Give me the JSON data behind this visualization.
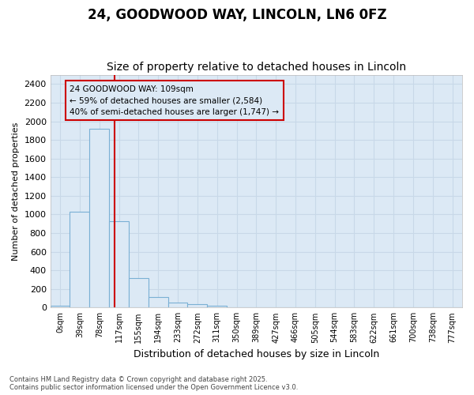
{
  "title1": "24, GOODWOOD WAY, LINCOLN, LN6 0FZ",
  "title2": "Size of property relative to detached houses in Lincoln",
  "xlabel": "Distribution of detached houses by size in Lincoln",
  "ylabel": "Number of detached properties",
  "bar_labels": [
    "0sqm",
    "39sqm",
    "78sqm",
    "117sqm",
    "155sqm",
    "194sqm",
    "233sqm",
    "272sqm",
    "311sqm",
    "350sqm",
    "389sqm",
    "427sqm",
    "466sqm",
    "505sqm",
    "544sqm",
    "583sqm",
    "622sqm",
    "661sqm",
    "700sqm",
    "738sqm",
    "777sqm"
  ],
  "bar_values": [
    20,
    1030,
    1920,
    930,
    320,
    110,
    55,
    35,
    20,
    0,
    0,
    0,
    0,
    0,
    0,
    0,
    0,
    0,
    0,
    0,
    0
  ],
  "bar_color": "#dce9f5",
  "bar_edge_color": "#7ab0d4",
  "ylim": [
    0,
    2500
  ],
  "yticks": [
    0,
    200,
    400,
    600,
    800,
    1000,
    1200,
    1400,
    1600,
    1800,
    2000,
    2200,
    2400
  ],
  "vline_x": 2.79,
  "vline_color": "#cc0000",
  "annotation_box_text": "24 GOODWOOD WAY: 109sqm\n← 59% of detached houses are smaller (2,584)\n40% of semi-detached houses are larger (1,747) →",
  "annotation_box_edge_color": "#cc0000",
  "fig_background_color": "#ffffff",
  "axes_background_color": "#dce9f5",
  "grid_color": "#c8d8e8",
  "footer_text": "Contains HM Land Registry data © Crown copyright and database right 2025.\nContains public sector information licensed under the Open Government Licence v3.0.",
  "title1_fontsize": 12,
  "title2_fontsize": 10,
  "ylabel_fontsize": 8,
  "xlabel_fontsize": 9
}
